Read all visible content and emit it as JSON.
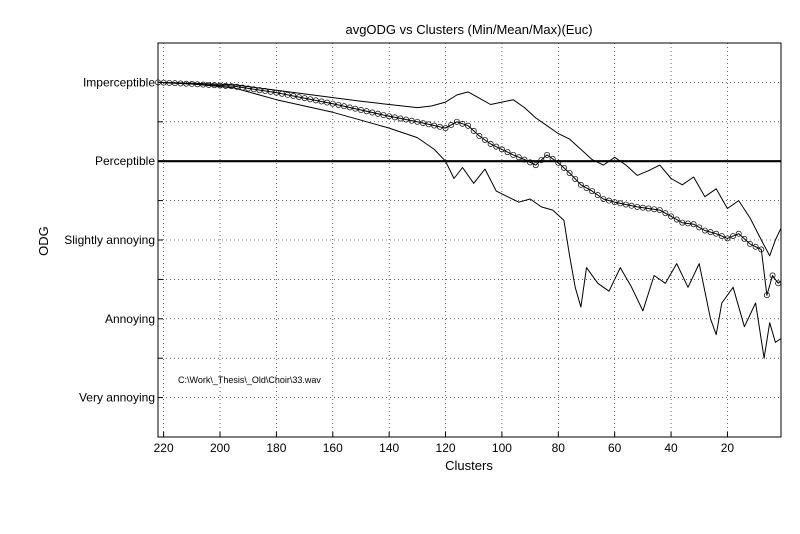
{
  "chart_data": {
    "type": "line",
    "title": "avgODG vs Clusters (Min/Mean/Max)(Euc)",
    "xlabel": "Clusters",
    "ylabel": "ODG",
    "annotation": "C:\\Work\\_Thesis\\_Old\\Choir\\33.wav",
    "xlim": [
      222,
      1
    ],
    "x_reversed": true,
    "ylim": [
      -4.5,
      0.5
    ],
    "grid": true,
    "x_ticks": [
      220,
      200,
      180,
      160,
      140,
      120,
      100,
      80,
      60,
      40,
      20
    ],
    "y_ticks": [
      {
        "value": 0,
        "label": "Imperceptible"
      },
      {
        "value": -1,
        "label": "Perceptible"
      },
      {
        "value": -2,
        "label": "Slightly annoying"
      },
      {
        "value": -3,
        "label": "Annoying"
      },
      {
        "value": -4,
        "label": "Very annoying"
      }
    ],
    "series": [
      {
        "role": "max",
        "x": [
          222,
          210,
          195,
          180,
          165,
          150,
          140,
          130,
          125,
          120,
          116,
          112,
          108,
          104,
          100,
          96,
          92,
          88,
          84,
          80,
          76,
          72,
          68,
          64,
          60,
          56,
          52,
          48,
          44,
          40,
          36,
          32,
          28,
          24,
          20,
          16,
          12,
          8,
          5,
          3,
          1
        ],
        "y": [
          0.0,
          -0.01,
          -0.03,
          -0.1,
          -0.17,
          -0.24,
          -0.28,
          -0.32,
          -0.3,
          -0.25,
          -0.16,
          -0.12,
          -0.2,
          -0.28,
          -0.25,
          -0.22,
          -0.32,
          -0.45,
          -0.55,
          -0.65,
          -0.72,
          -0.85,
          -0.98,
          -1.05,
          -0.95,
          -1.05,
          -1.18,
          -1.12,
          -1.05,
          -1.22,
          -1.3,
          -1.2,
          -1.45,
          -1.35,
          -1.6,
          -1.5,
          -1.72,
          -2.0,
          -2.2,
          -2.0,
          -1.85
        ]
      },
      {
        "role": "mean",
        "x": [
          222,
          210,
          195,
          180,
          170,
          160,
          150,
          140,
          130,
          120,
          116,
          112,
          108,
          104,
          100,
          96,
          92,
          88,
          84,
          80,
          76,
          72,
          68,
          64,
          60,
          56,
          52,
          48,
          44,
          40,
          36,
          32,
          28,
          24,
          20,
          16,
          12,
          8,
          6,
          4,
          2,
          1
        ],
        "y": [
          0.0,
          -0.02,
          -0.05,
          -0.13,
          -0.2,
          -0.27,
          -0.35,
          -0.43,
          -0.5,
          -0.58,
          -0.5,
          -0.55,
          -0.68,
          -0.78,
          -0.85,
          -0.92,
          -0.98,
          -1.05,
          -0.92,
          -1.02,
          -1.15,
          -1.3,
          -1.38,
          -1.48,
          -1.52,
          -1.55,
          -1.58,
          -1.6,
          -1.62,
          -1.7,
          -1.78,
          -1.8,
          -1.88,
          -1.92,
          -1.98,
          -1.92,
          -2.05,
          -2.12,
          -2.7,
          -2.45,
          -2.55,
          -2.52
        ]
      },
      {
        "role": "min",
        "x": [
          222,
          210,
          195,
          180,
          170,
          160,
          150,
          140,
          130,
          124,
          120,
          117,
          114,
          110,
          106,
          102,
          98,
          94,
          90,
          86,
          82,
          78,
          76,
          74,
          72,
          70,
          66,
          62,
          58,
          54,
          50,
          46,
          42,
          38,
          34,
          30,
          26,
          24,
          22,
          18,
          14,
          10,
          7,
          5,
          3,
          1
        ],
        "y": [
          0.0,
          -0.02,
          -0.07,
          -0.22,
          -0.3,
          -0.38,
          -0.48,
          -0.58,
          -0.7,
          -0.85,
          -1.0,
          -1.22,
          -1.08,
          -1.28,
          -1.1,
          -1.38,
          -1.45,
          -1.52,
          -1.48,
          -1.58,
          -1.62,
          -1.75,
          -2.2,
          -2.6,
          -2.85,
          -2.35,
          -2.55,
          -2.65,
          -2.35,
          -2.6,
          -2.9,
          -2.45,
          -2.55,
          -2.3,
          -2.6,
          -2.3,
          -3.0,
          -3.2,
          -2.8,
          -2.6,
          -3.1,
          -2.8,
          -3.5,
          -3.05,
          -3.3,
          -3.25
        ]
      },
      {
        "role": "reference",
        "x": [
          222,
          1
        ],
        "y": [
          -1,
          -1
        ]
      }
    ]
  }
}
